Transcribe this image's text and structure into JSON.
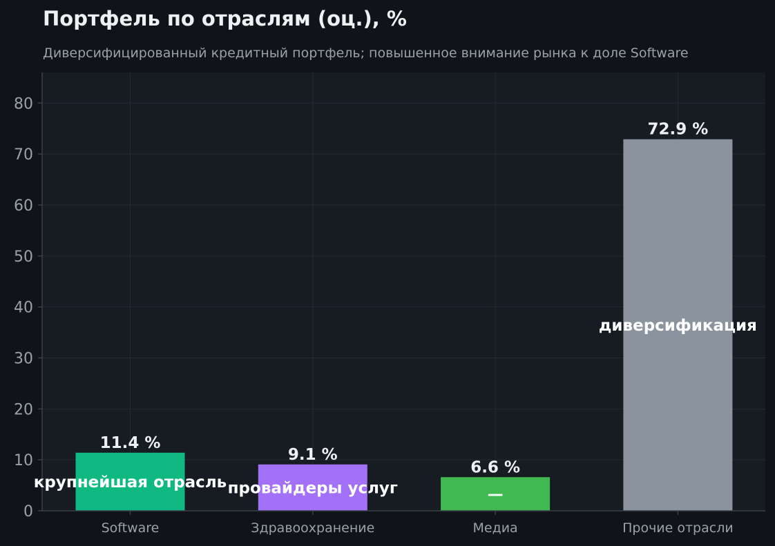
{
  "header": {
    "title": "Портфель по отраслям (оц.), %",
    "subtitle": "Диверсифицированный кредитный портфель; повышенное внимание рынка к доле Software"
  },
  "chart_data": {
    "type": "bar",
    "title": "Портфель по отраслям (оц.), %",
    "subtitle": "Диверсифицированный кредитный портфель; повышенное внимание рынка к доле Software",
    "categories": [
      "Software",
      "Здравоохранение",
      "Медиа",
      "Прочие отрасли"
    ],
    "values": [
      11.4,
      9.1,
      6.6,
      72.9
    ],
    "value_labels": [
      "11.4 %",
      "9.1 %",
      "6.6 %",
      "72.9 %"
    ],
    "bar_annotations": [
      "крупнейшая отрасль",
      "провайдеры услуг",
      "—",
      "диверсификация"
    ],
    "colors": [
      "#10b981",
      "#a371f7",
      "#3fb950",
      "#8b949e"
    ],
    "xlabel": "",
    "ylabel": "",
    "ylim": [
      0,
      86
    ],
    "yticks": [
      0,
      10,
      20,
      30,
      40,
      50,
      60,
      70,
      80
    ],
    "grid": true,
    "legend": "none"
  },
  "theme": {
    "background": "#101418",
    "plot_background": "#171b22",
    "grid_color": "#252b34",
    "axis_color": "#3a414b",
    "text_color": "#eef1f4",
    "muted_text_color": "#9aa1a9"
  }
}
